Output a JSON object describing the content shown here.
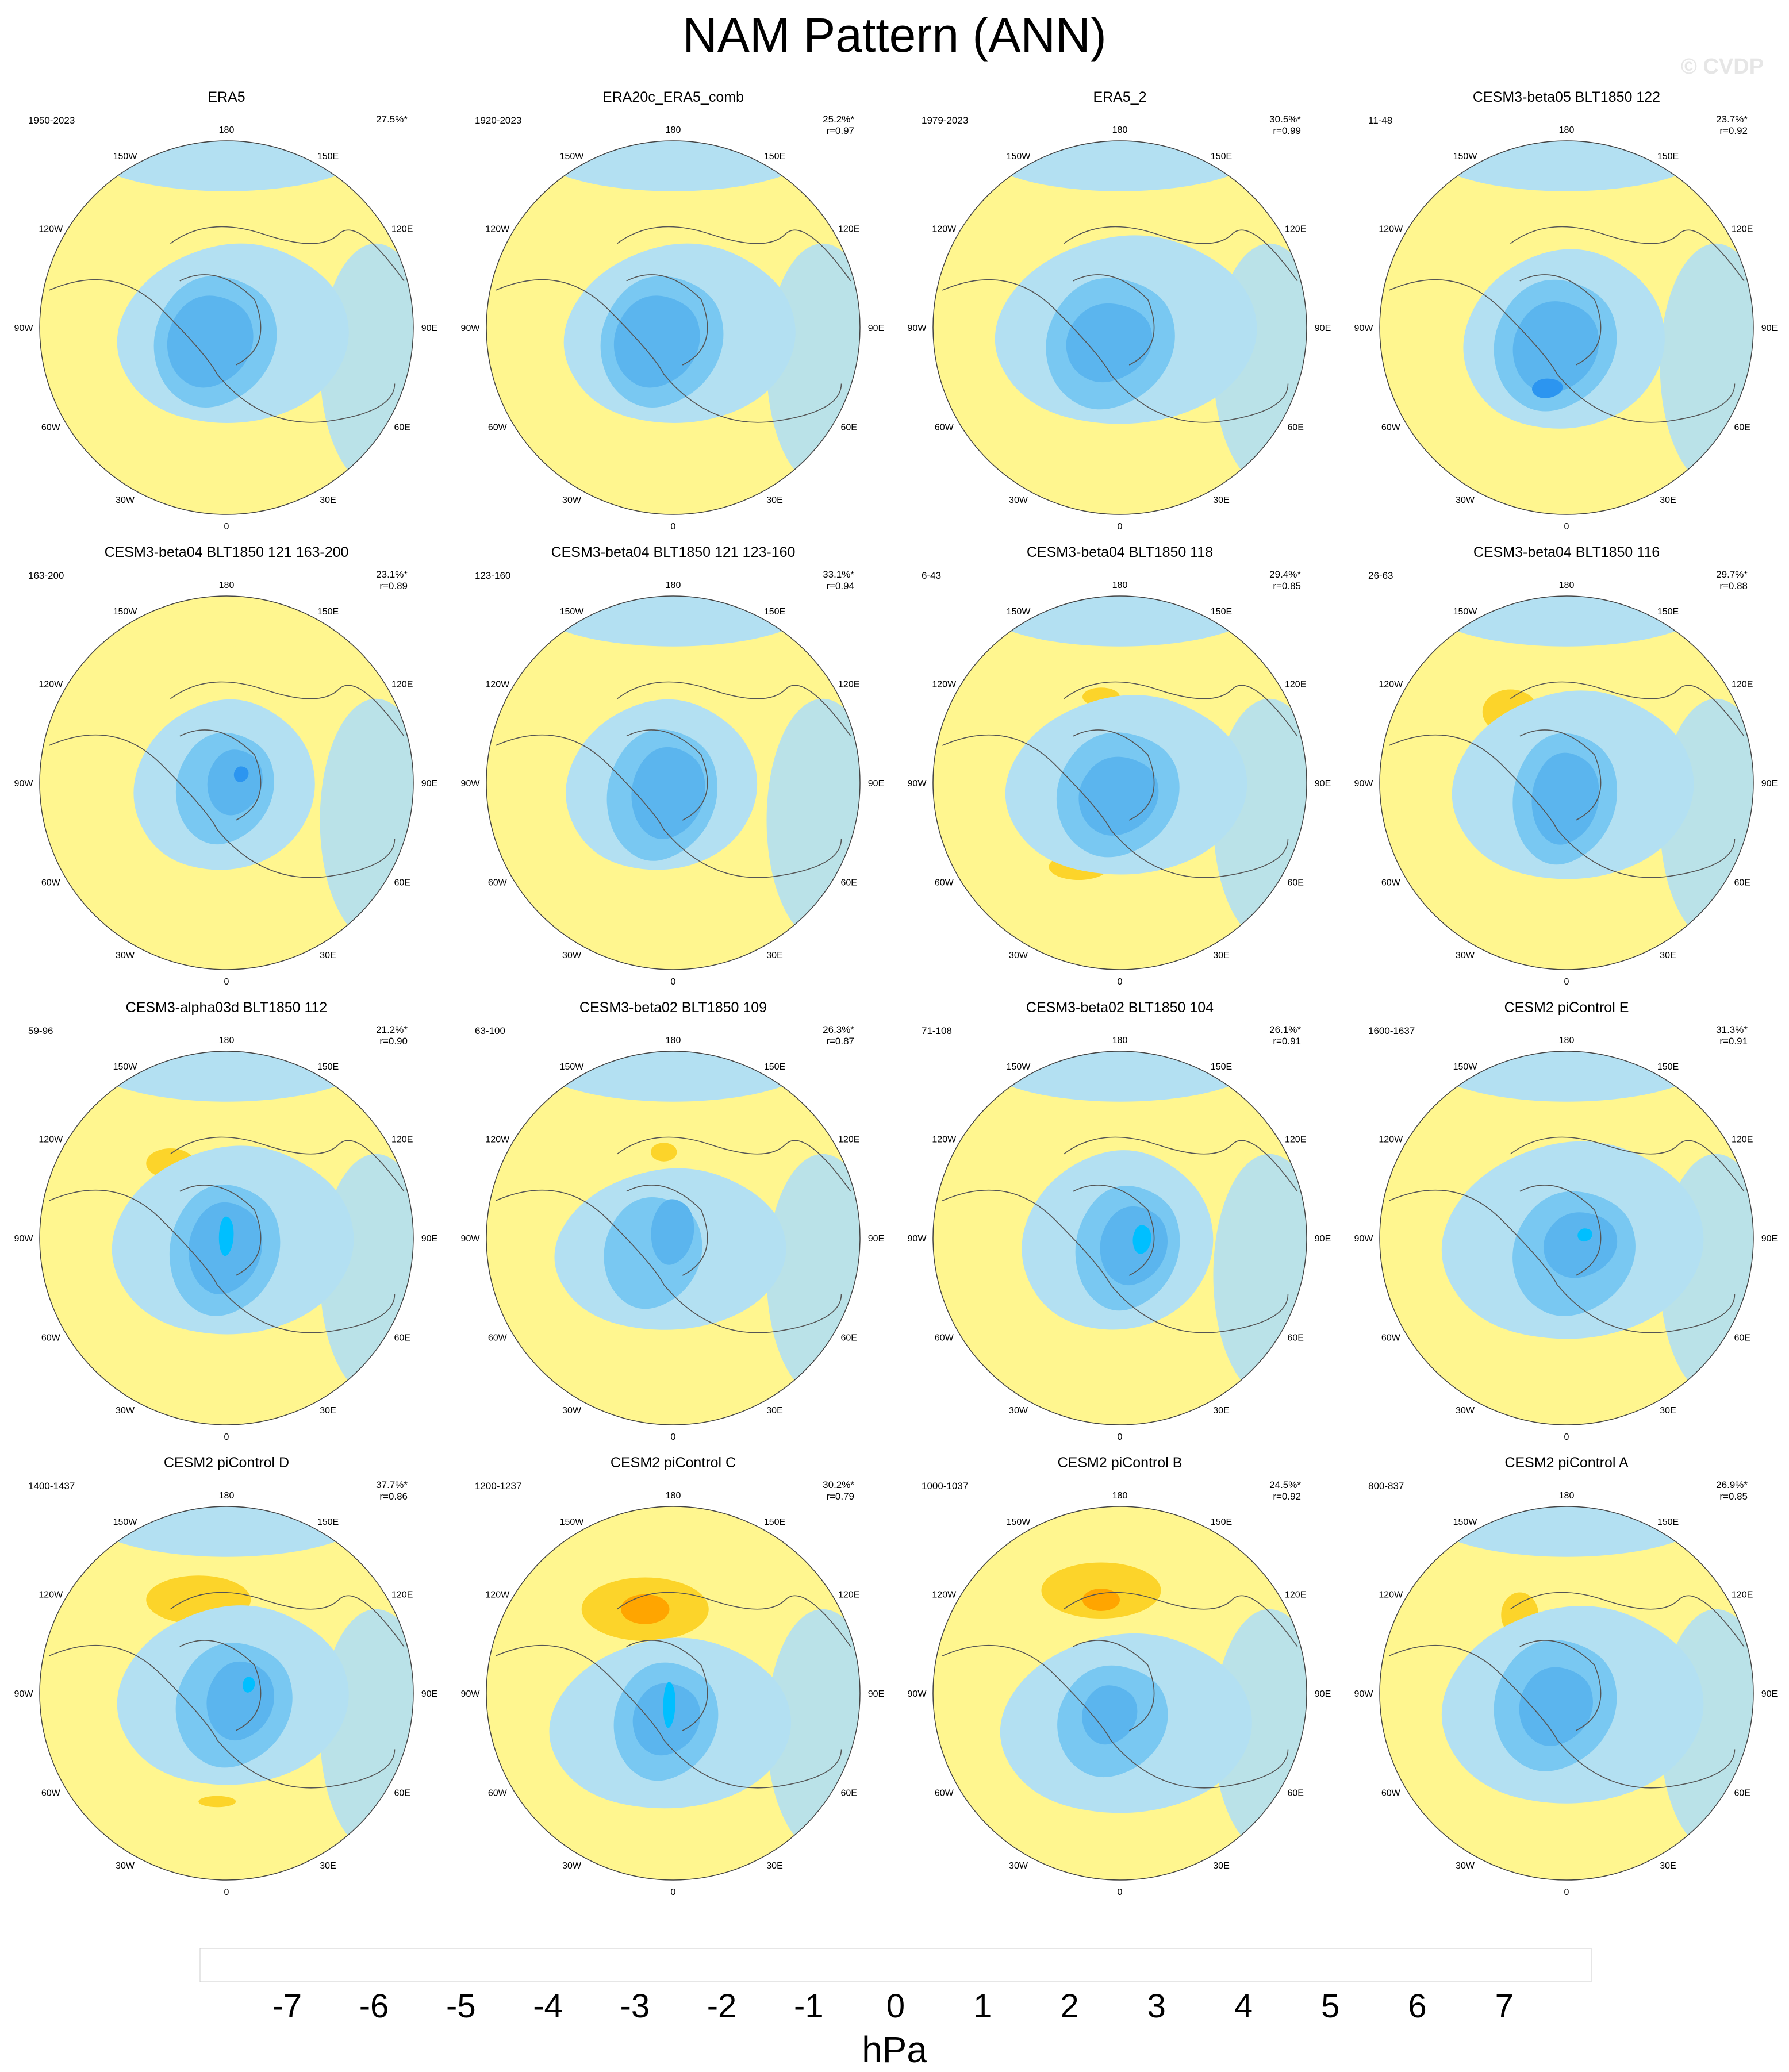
{
  "title": "NAM Pattern (ANN)",
  "watermark": "© CVDP",
  "lon_labels": [
    "180",
    "150E",
    "120E",
    "90E",
    "60E",
    "30E",
    "0",
    "30W",
    "60W",
    "90W",
    "120W",
    "150W"
  ],
  "colors": {
    "ocean_line": "#555555",
    "coast": "#555555"
  },
  "panels": [
    {
      "title": "ERA5",
      "period": "1950-2023",
      "pct": "27.5%*",
      "r": "",
      "variant": 0
    },
    {
      "title": "ERA20c_ERA5_comb",
      "period": "1920-2023",
      "pct": "25.2%*",
      "r": "r=0.97",
      "variant": 0
    },
    {
      "title": "ERA5_2",
      "period": "1979-2023",
      "pct": "30.5%*",
      "r": "r=0.99",
      "variant": 1
    },
    {
      "title": "CESM3-beta05 BLT1850 122",
      "period": "11-48",
      "pct": "23.7%*",
      "r": "r=0.92",
      "variant": 2
    },
    {
      "title": "CESM3-beta04 BLT1850 121 163-200",
      "period": "163-200",
      "pct": "23.1%*",
      "r": "r=0.89",
      "variant": 3
    },
    {
      "title": "CESM3-beta04 BLT1850 121 123-160",
      "period": "123-160",
      "pct": "33.1%*",
      "r": "r=0.94",
      "variant": 4
    },
    {
      "title": "CESM3-beta04 BLT1850 118",
      "period": "6-43",
      "pct": "29.4%*",
      "r": "r=0.85",
      "variant": 5
    },
    {
      "title": "CESM3-beta04 BLT1850 116",
      "period": "26-63",
      "pct": "29.7%*",
      "r": "r=0.88",
      "variant": 6
    },
    {
      "title": "CESM3-alpha03d BLT1850 112",
      "period": "59-96",
      "pct": "21.2%*",
      "r": "r=0.90",
      "variant": 7
    },
    {
      "title": "CESM3-beta02 BLT1850 109",
      "period": "63-100",
      "pct": "26.3%*",
      "r": "r=0.87",
      "variant": 8
    },
    {
      "title": "CESM3-beta02 BLT1850 104",
      "period": "71-108",
      "pct": "26.1%*",
      "r": "r=0.91",
      "variant": 9
    },
    {
      "title": "CESM2 piControl E",
      "period": "1600-1637",
      "pct": "31.3%*",
      "r": "r=0.91",
      "variant": 10
    },
    {
      "title": "CESM2 piControl D",
      "period": "1400-1437",
      "pct": "37.7%*",
      "r": "r=0.86",
      "variant": 11
    },
    {
      "title": "CESM2 piControl C",
      "period": "1200-1237",
      "pct": "30.2%*",
      "r": "r=0.79",
      "variant": 12
    },
    {
      "title": "CESM2 piControl B",
      "period": "1000-1037",
      "pct": "24.5%*",
      "r": "r=0.92",
      "variant": 13
    },
    {
      "title": "CESM2 piControl A",
      "period": "800-837",
      "pct": "26.9%*",
      "r": "r=0.85",
      "variant": 14
    }
  ],
  "colorbar": {
    "unit": "hPa",
    "labels": [
      "-7",
      "-6",
      "-5",
      "-4",
      "-3",
      "-2",
      "-1",
      "0",
      "1",
      "2",
      "3",
      "4",
      "5",
      "6",
      "7"
    ],
    "colors": [
      "#8a2be2",
      "#1e1eff",
      "#2a4be8",
      "#3474e6",
      "#2c95f0",
      "#00bfff",
      "#79c8f2",
      "#b3e0f2",
      "#fff68f",
      "#fcd42a",
      "#ffa500",
      "#ff6a00",
      "#ff2a00",
      "#e60000",
      "#cc1f1f",
      "#ffb3b3"
    ]
  }
}
